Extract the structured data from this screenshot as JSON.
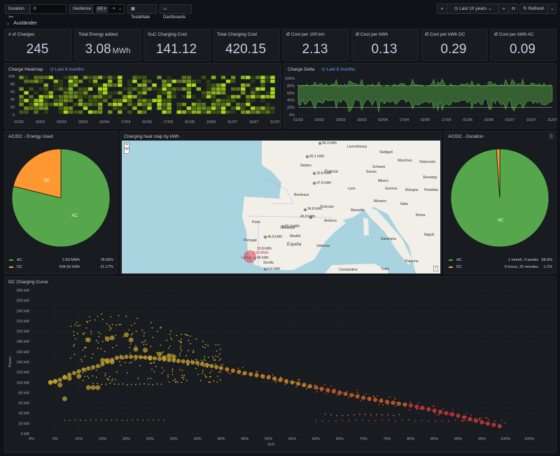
{
  "topbar": {
    "duration_label": "Duration >=",
    "duration_value": "0",
    "geofence_label": "Geofence",
    "geofence_chip": "A3",
    "teslamate_label": "TeslaMate",
    "dashboards_label": "Dashboards",
    "time_range": "Last 10 years",
    "refresh_label": "Refresh"
  },
  "row": {
    "title": "Ausländer"
  },
  "stats": [
    {
      "title": "# of Charges",
      "value": "245",
      "unit": ""
    },
    {
      "title": "Total Energy added",
      "value": "3.08",
      "unit": "MWh"
    },
    {
      "title": "SuC Charging Cost",
      "value": "141.12",
      "unit": ""
    },
    {
      "title": "Total Charging Cost",
      "value": "420.15",
      "unit": ""
    },
    {
      "title": "Ø Cost per 100 km",
      "value": "2.13",
      "unit": ""
    },
    {
      "title": "Ø Cost per kWh",
      "value": "0.13",
      "unit": ""
    },
    {
      "title": "Ø Cost per kWh DC",
      "value": "0.29",
      "unit": ""
    },
    {
      "title": "Ø Cost per kWh AC",
      "value": "0.09",
      "unit": ""
    }
  ],
  "heatmap": {
    "title": "Charge Heatmap",
    "time_shift": "Last 6 months",
    "y_ticks": [
      "100",
      "80",
      "60",
      "40",
      "20",
      "0"
    ],
    "x_ticks": [
      "01/02",
      "16/02",
      "03/03",
      "18/03",
      "02/04",
      "17/04",
      "02/05",
      "17/05",
      "01/06",
      "16/06",
      "01/07",
      "16/07",
      "31/07"
    ]
  },
  "delta": {
    "title": "Charge Delta",
    "time_shift": "Last 6 months",
    "y_ticks": [
      "100%",
      "80%",
      "60%",
      "40%",
      "20%",
      "0%"
    ],
    "x_ticks": [
      "01/02",
      "16/02",
      "03/03",
      "18/03",
      "02/04",
      "17/04",
      "02/05",
      "17/05",
      "01/06",
      "16/06",
      "01/07",
      "16/07",
      "31/07"
    ]
  },
  "energy_pie": {
    "title": "AC/DC - Energy Used",
    "slices": [
      {
        "label": "AC",
        "value": "2.59 MWh",
        "percent": "78.83%",
        "pct": 78.83,
        "color": "#56a64b"
      },
      {
        "label": "DC",
        "value": "694.60 kWh",
        "percent": "21.17%",
        "pct": 21.17,
        "color": "#ff9830"
      }
    ]
  },
  "duration_pie": {
    "title": "AC/DC - Duration",
    "slices": [
      {
        "label": "AC",
        "value": "1 month, 0 weeks",
        "percent": "98.9%",
        "pct": 98.9,
        "color": "#56a64b"
      },
      {
        "label": "DC",
        "value": "9 hours, 20 minutes",
        "percent": "1.1%",
        "pct": 1.1,
        "color": "#ff9830"
      }
    ]
  },
  "map": {
    "title": "Charging heat map by kWh",
    "places": [
      "Luxembourg",
      "Stuttgart",
      "Nantes",
      "München",
      "Österreich",
      "France",
      "Schweiz",
      "Suisse",
      "Lyon",
      "Milano",
      "Genova",
      "Bologna",
      "Slovenija",
      "Hrvatska",
      "Italia",
      "Roma",
      "Bordeaux",
      "Marseille",
      "Monaco",
      "Toulouse",
      "Andorra",
      "Porto",
      "Valladolid",
      "España",
      "Madrid",
      "Valencia",
      "Portugal",
      "Lisboa",
      "Sevilla",
      "Sardegna",
      "Napoli",
      "Palermo",
      "Tunis",
      "Constantine"
    ],
    "labels": [
      "58.3 kWh",
      "99.1 kWh",
      "19.8 kWh",
      "37.8 kWh",
      "34.8 kWh",
      "45.8 kWh",
      "55.3 kWh",
      "46.8 kWh",
      "13.8 kWh",
      "2.90 MWh",
      "45 kWh",
      "5.8 kWh"
    ]
  },
  "scatter": {
    "title": "DC Charging Curve",
    "y_label": "Power",
    "x_label": "SoC",
    "y_ticks": [
      "0 kW",
      "20 kW",
      "40 kW",
      "60 kW",
      "80 kW",
      "100 kW",
      "120 kW",
      "140 kW",
      "160 kW",
      "180 kW",
      "200 kW",
      "220 kW",
      "240 kW",
      "260 kW",
      "280 kW"
    ],
    "x_ticks": [
      "0%",
      "5%",
      "10%",
      "15%",
      "20%",
      "25%",
      "30%",
      "35%",
      "40%",
      "45%",
      "50%",
      "55%",
      "60%",
      "65%",
      "70%",
      "75%",
      "80%",
      "85%",
      "90%",
      "95%",
      "100%",
      "105%"
    ]
  },
  "chart_data": [
    {
      "type": "pie",
      "title": "AC/DC - Energy Used",
      "categories": [
        "AC",
        "DC"
      ],
      "values": [
        78.83,
        21.17
      ]
    },
    {
      "type": "pie",
      "title": "AC/DC - Duration",
      "categories": [
        "AC",
        "DC"
      ],
      "values": [
        98.9,
        1.1
      ]
    },
    {
      "type": "scatter",
      "title": "DC Charging Curve",
      "xlabel": "SoC",
      "ylabel": "Power",
      "xlim": [
        0,
        110
      ],
      "ylim": [
        0,
        280
      ],
      "x": [
        4,
        6,
        8,
        11,
        14,
        16,
        18,
        20,
        22,
        25,
        28,
        30,
        33,
        35,
        38,
        40,
        45,
        50,
        55,
        60,
        65,
        70,
        75,
        80,
        85,
        90,
        95,
        100
      ],
      "y": [
        100,
        105,
        115,
        125,
        132,
        140,
        148,
        150,
        150,
        148,
        145,
        143,
        140,
        138,
        132,
        128,
        118,
        110,
        100,
        90,
        80,
        70,
        62,
        55,
        45,
        35,
        22,
        12
      ]
    }
  ]
}
